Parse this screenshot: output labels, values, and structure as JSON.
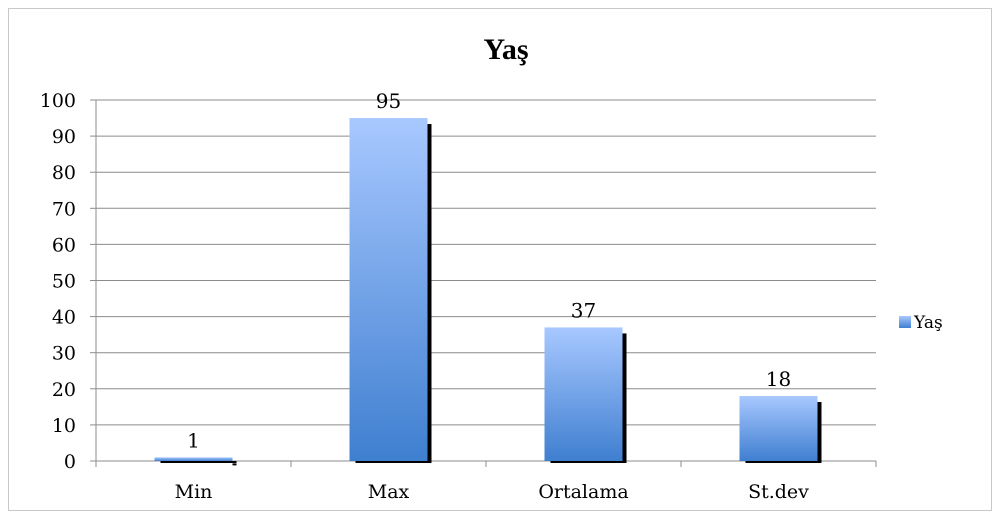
{
  "chart_data": {
    "type": "bar",
    "title": "Yaş",
    "categories": [
      "Min",
      "Max",
      "Ortalama",
      "St.dev"
    ],
    "series": [
      {
        "name": "Yaş",
        "values": [
          1,
          95,
          37,
          18
        ]
      }
    ],
    "data_labels": [
      "1",
      "95",
      "37",
      "18"
    ],
    "ylim": [
      0,
      100
    ],
    "yticks": [
      0,
      10,
      20,
      30,
      40,
      50,
      60,
      70,
      80,
      90,
      100
    ],
    "grid": true,
    "legend_position": "right",
    "bar_color": "#4a86d4"
  }
}
